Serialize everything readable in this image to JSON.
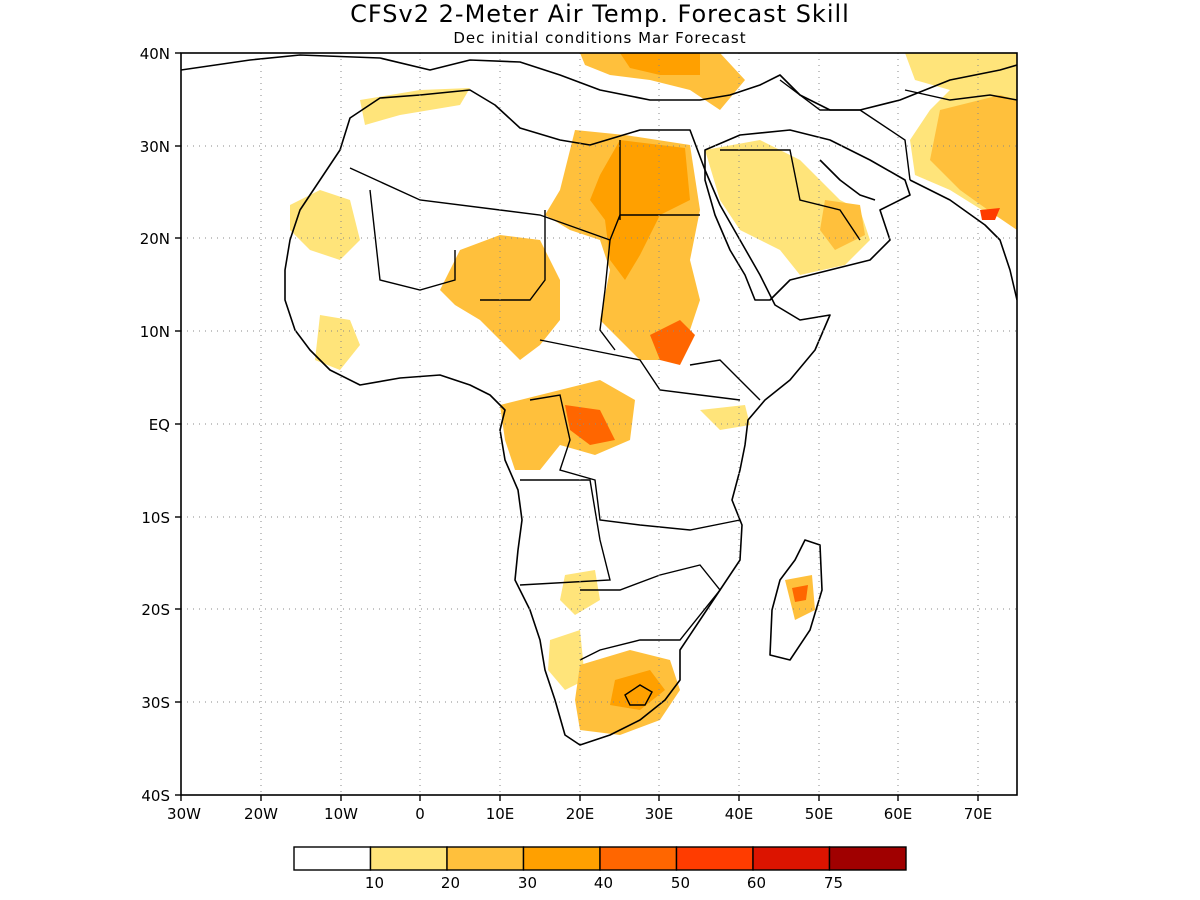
{
  "title": "CFSv2 2-Meter Air Temp. Forecast Skill",
  "subtitle": "Dec initial conditions  Mar Forecast",
  "map": {
    "region": "Africa and Middle East",
    "lon_range": [
      -30,
      75
    ],
    "lat_range": [
      -40,
      40
    ],
    "grid": "dotted",
    "lat_labels": [
      "40N",
      "30N",
      "20N",
      "10N",
      "EQ",
      "10S",
      "20S",
      "30S",
      "40S"
    ],
    "lon_labels": [
      "30W",
      "20W",
      "10W",
      "0",
      "10E",
      "20E",
      "30E",
      "40E",
      "50E",
      "60E",
      "70E"
    ],
    "land_outline_color": "#000000"
  },
  "colorbar": {
    "colors": [
      "#ffffff",
      "#ffe47a",
      "#ffc03c",
      "#ffa000",
      "#ff6600",
      "#ff3c00",
      "#dc1400",
      "#a00000"
    ],
    "labels": [
      "10",
      "20",
      "30",
      "40",
      "50",
      "60",
      "75"
    ]
  }
}
